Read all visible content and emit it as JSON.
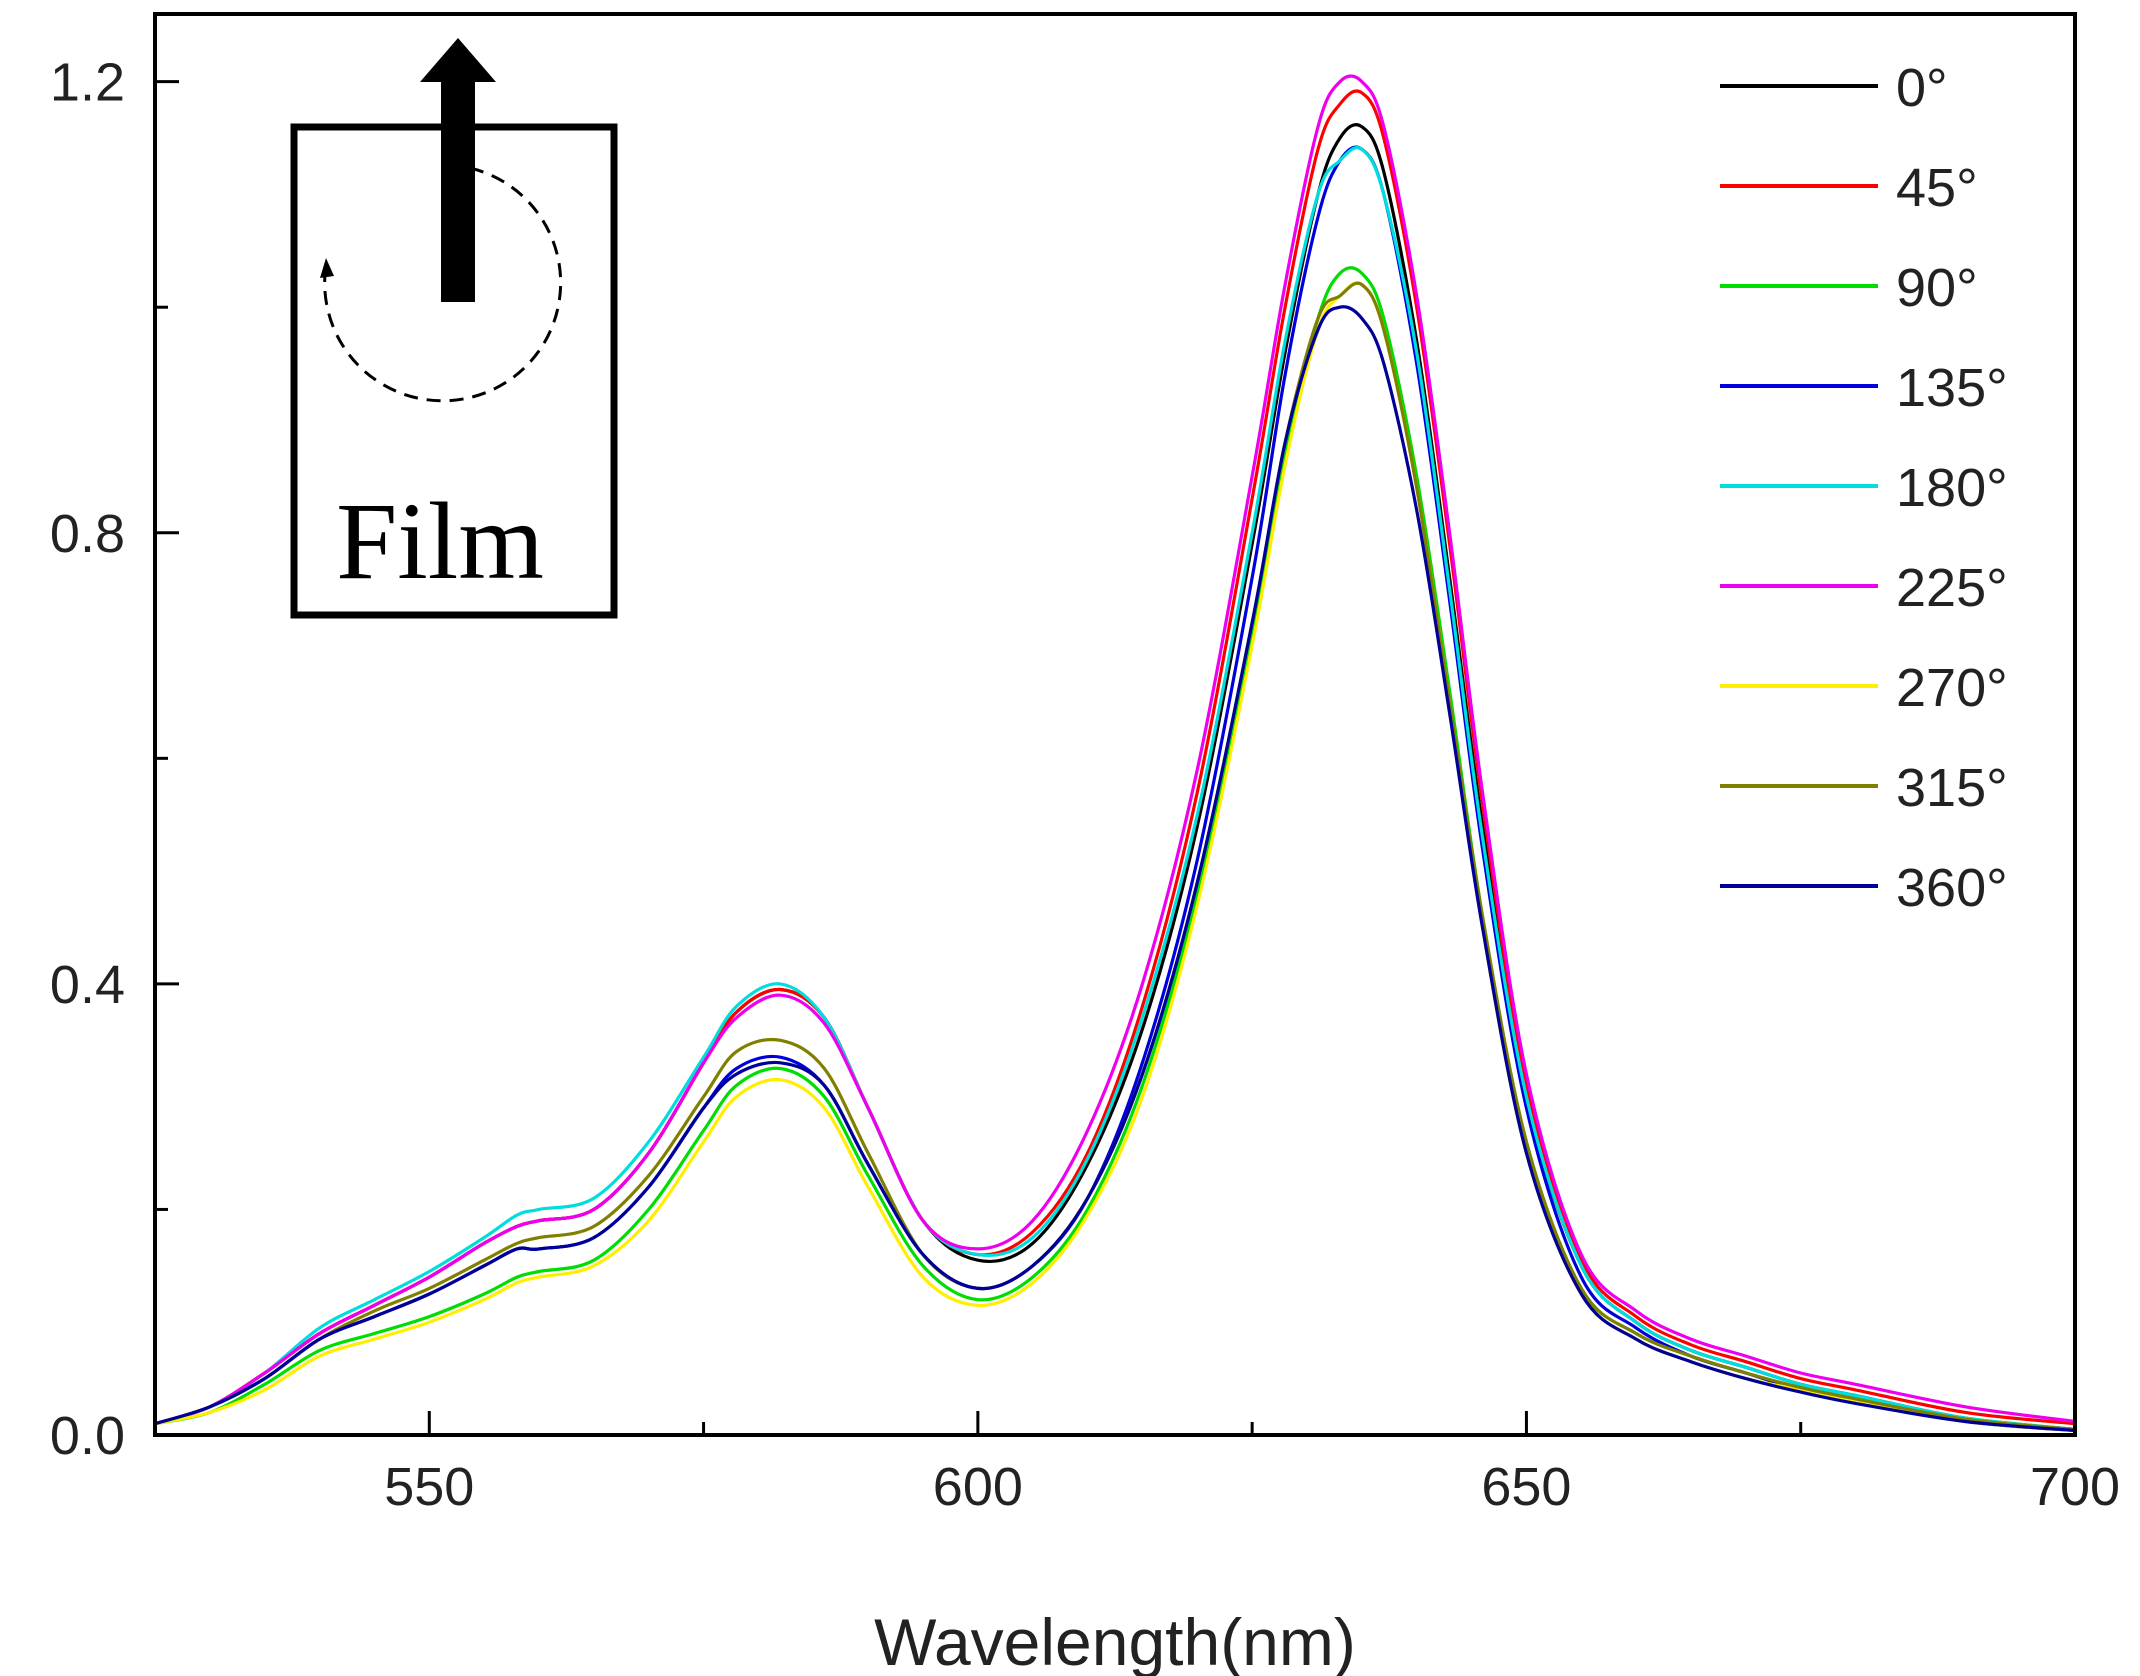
{
  "chart_data": {
    "type": "line",
    "title": "",
    "xlabel": "Wavelength(nm)",
    "ylabel": "",
    "xlim": [
      525,
      700
    ],
    "ylim": [
      0,
      1.26
    ],
    "xticks": [
      550,
      600,
      650,
      700
    ],
    "xtick_labels": [
      "550",
      "600",
      "650",
      "700"
    ],
    "xminor": [
      575,
      625,
      675
    ],
    "yticks": [
      0,
      0.4,
      0.8,
      1.2
    ],
    "ytick_labels": [
      "0.0",
      "0.4",
      "0.8",
      "1.2"
    ],
    "yminor": [
      0.2,
      0.6,
      1.0
    ],
    "grid": false,
    "legend_position": "top-right",
    "x": [
      525,
      530,
      535,
      540,
      545,
      550,
      555,
      558,
      560,
      565,
      570,
      575,
      578,
      582,
      586,
      590,
      595,
      600,
      605,
      610,
      615,
      620,
      625,
      628,
      631,
      633,
      635,
      637,
      640,
      643,
      646,
      650,
      655,
      660,
      665,
      670,
      675,
      680,
      690,
      700
    ],
    "series": [
      {
        "name": "0°",
        "color": "#000000",
        "values": [
          0.01,
          0.025,
          0.055,
          0.09,
          0.115,
          0.14,
          0.17,
          0.185,
          0.19,
          0.2,
          0.25,
          0.33,
          0.375,
          0.395,
          0.37,
          0.29,
          0.19,
          0.155,
          0.17,
          0.24,
          0.36,
          0.54,
          0.79,
          0.96,
          1.1,
          1.15,
          1.16,
          1.12,
          0.97,
          0.76,
          0.54,
          0.3,
          0.15,
          0.1,
          0.075,
          0.06,
          0.045,
          0.035,
          0.015,
          0.005
        ]
      },
      {
        "name": "45°",
        "color": "#ff0000",
        "values": [
          0.01,
          0.025,
          0.055,
          0.09,
          0.115,
          0.14,
          0.17,
          0.185,
          0.19,
          0.2,
          0.25,
          0.33,
          0.375,
          0.395,
          0.37,
          0.29,
          0.19,
          0.16,
          0.18,
          0.25,
          0.38,
          0.57,
          0.83,
          1.0,
          1.14,
          1.18,
          1.19,
          1.15,
          1.0,
          0.79,
          0.56,
          0.31,
          0.155,
          0.105,
          0.08,
          0.065,
          0.05,
          0.04,
          0.02,
          0.01
        ]
      },
      {
        "name": "90°",
        "color": "#00dd00",
        "values": [
          0.01,
          0.02,
          0.045,
          0.075,
          0.09,
          0.105,
          0.125,
          0.14,
          0.145,
          0.155,
          0.2,
          0.27,
          0.31,
          0.325,
          0.3,
          0.23,
          0.15,
          0.12,
          0.14,
          0.2,
          0.31,
          0.48,
          0.71,
          0.87,
          0.99,
          1.03,
          1.03,
          0.99,
          0.85,
          0.66,
          0.46,
          0.26,
          0.13,
          0.09,
          0.07,
          0.055,
          0.042,
          0.032,
          0.015,
          0.005
        ]
      },
      {
        "name": "135°",
        "color": "#0000dd",
        "values": [
          0.01,
          0.025,
          0.05,
          0.085,
          0.105,
          0.125,
          0.15,
          0.165,
          0.165,
          0.175,
          0.22,
          0.29,
          0.325,
          0.335,
          0.31,
          0.24,
          0.16,
          0.13,
          0.15,
          0.21,
          0.33,
          0.51,
          0.76,
          0.94,
          1.08,
          1.13,
          1.14,
          1.1,
          0.95,
          0.74,
          0.52,
          0.29,
          0.14,
          0.095,
          0.07,
          0.055,
          0.04,
          0.03,
          0.012,
          0.004
        ]
      },
      {
        "name": "180°",
        "color": "#00dddd",
        "values": [
          0.01,
          0.025,
          0.055,
          0.095,
          0.12,
          0.145,
          0.175,
          0.195,
          0.2,
          0.21,
          0.26,
          0.335,
          0.38,
          0.4,
          0.37,
          0.29,
          0.19,
          0.16,
          0.175,
          0.245,
          0.37,
          0.55,
          0.8,
          0.97,
          1.1,
          1.13,
          1.14,
          1.1,
          0.96,
          0.75,
          0.53,
          0.3,
          0.15,
          0.1,
          0.075,
          0.06,
          0.045,
          0.035,
          0.015,
          0.005
        ]
      },
      {
        "name": "225°",
        "color": "#ee00ee",
        "values": [
          0.01,
          0.025,
          0.055,
          0.09,
          0.115,
          0.14,
          0.17,
          0.185,
          0.19,
          0.2,
          0.25,
          0.33,
          0.37,
          0.39,
          0.365,
          0.29,
          0.19,
          0.165,
          0.19,
          0.27,
          0.4,
          0.59,
          0.85,
          1.02,
          1.16,
          1.2,
          1.2,
          1.16,
          1.01,
          0.8,
          0.57,
          0.32,
          0.16,
          0.11,
          0.085,
          0.07,
          0.055,
          0.045,
          0.025,
          0.012
        ]
      },
      {
        "name": "270°",
        "color": "#ffee00",
        "values": [
          0.01,
          0.02,
          0.04,
          0.07,
          0.085,
          0.1,
          0.12,
          0.135,
          0.14,
          0.15,
          0.19,
          0.26,
          0.3,
          0.315,
          0.29,
          0.22,
          0.14,
          0.115,
          0.135,
          0.195,
          0.3,
          0.47,
          0.7,
          0.86,
          0.98,
          1.01,
          1.02,
          0.98,
          0.84,
          0.65,
          0.45,
          0.25,
          0.125,
          0.085,
          0.065,
          0.05,
          0.04,
          0.03,
          0.012,
          0.004
        ]
      },
      {
        "name": "315°",
        "color": "#808000",
        "values": [
          0.01,
          0.025,
          0.05,
          0.085,
          0.11,
          0.13,
          0.155,
          0.17,
          0.175,
          0.185,
          0.23,
          0.3,
          0.34,
          0.35,
          0.325,
          0.25,
          0.16,
          0.13,
          0.15,
          0.21,
          0.32,
          0.49,
          0.72,
          0.88,
          0.99,
          1.01,
          1.02,
          0.98,
          0.84,
          0.65,
          0.46,
          0.26,
          0.13,
          0.09,
          0.07,
          0.055,
          0.042,
          0.032,
          0.014,
          0.005
        ]
      },
      {
        "name": "360°",
        "color": "#000099",
        "values": [
          0.01,
          0.025,
          0.05,
          0.085,
          0.105,
          0.125,
          0.15,
          0.165,
          0.165,
          0.175,
          0.22,
          0.29,
          0.32,
          0.33,
          0.31,
          0.24,
          0.16,
          0.13,
          0.15,
          0.21,
          0.32,
          0.49,
          0.72,
          0.88,
          0.98,
          1.0,
          0.99,
          0.95,
          0.82,
          0.64,
          0.45,
          0.25,
          0.125,
          0.085,
          0.065,
          0.05,
          0.038,
          0.028,
          0.012,
          0.004
        ]
      }
    ]
  },
  "inset": {
    "label": "Film"
  }
}
